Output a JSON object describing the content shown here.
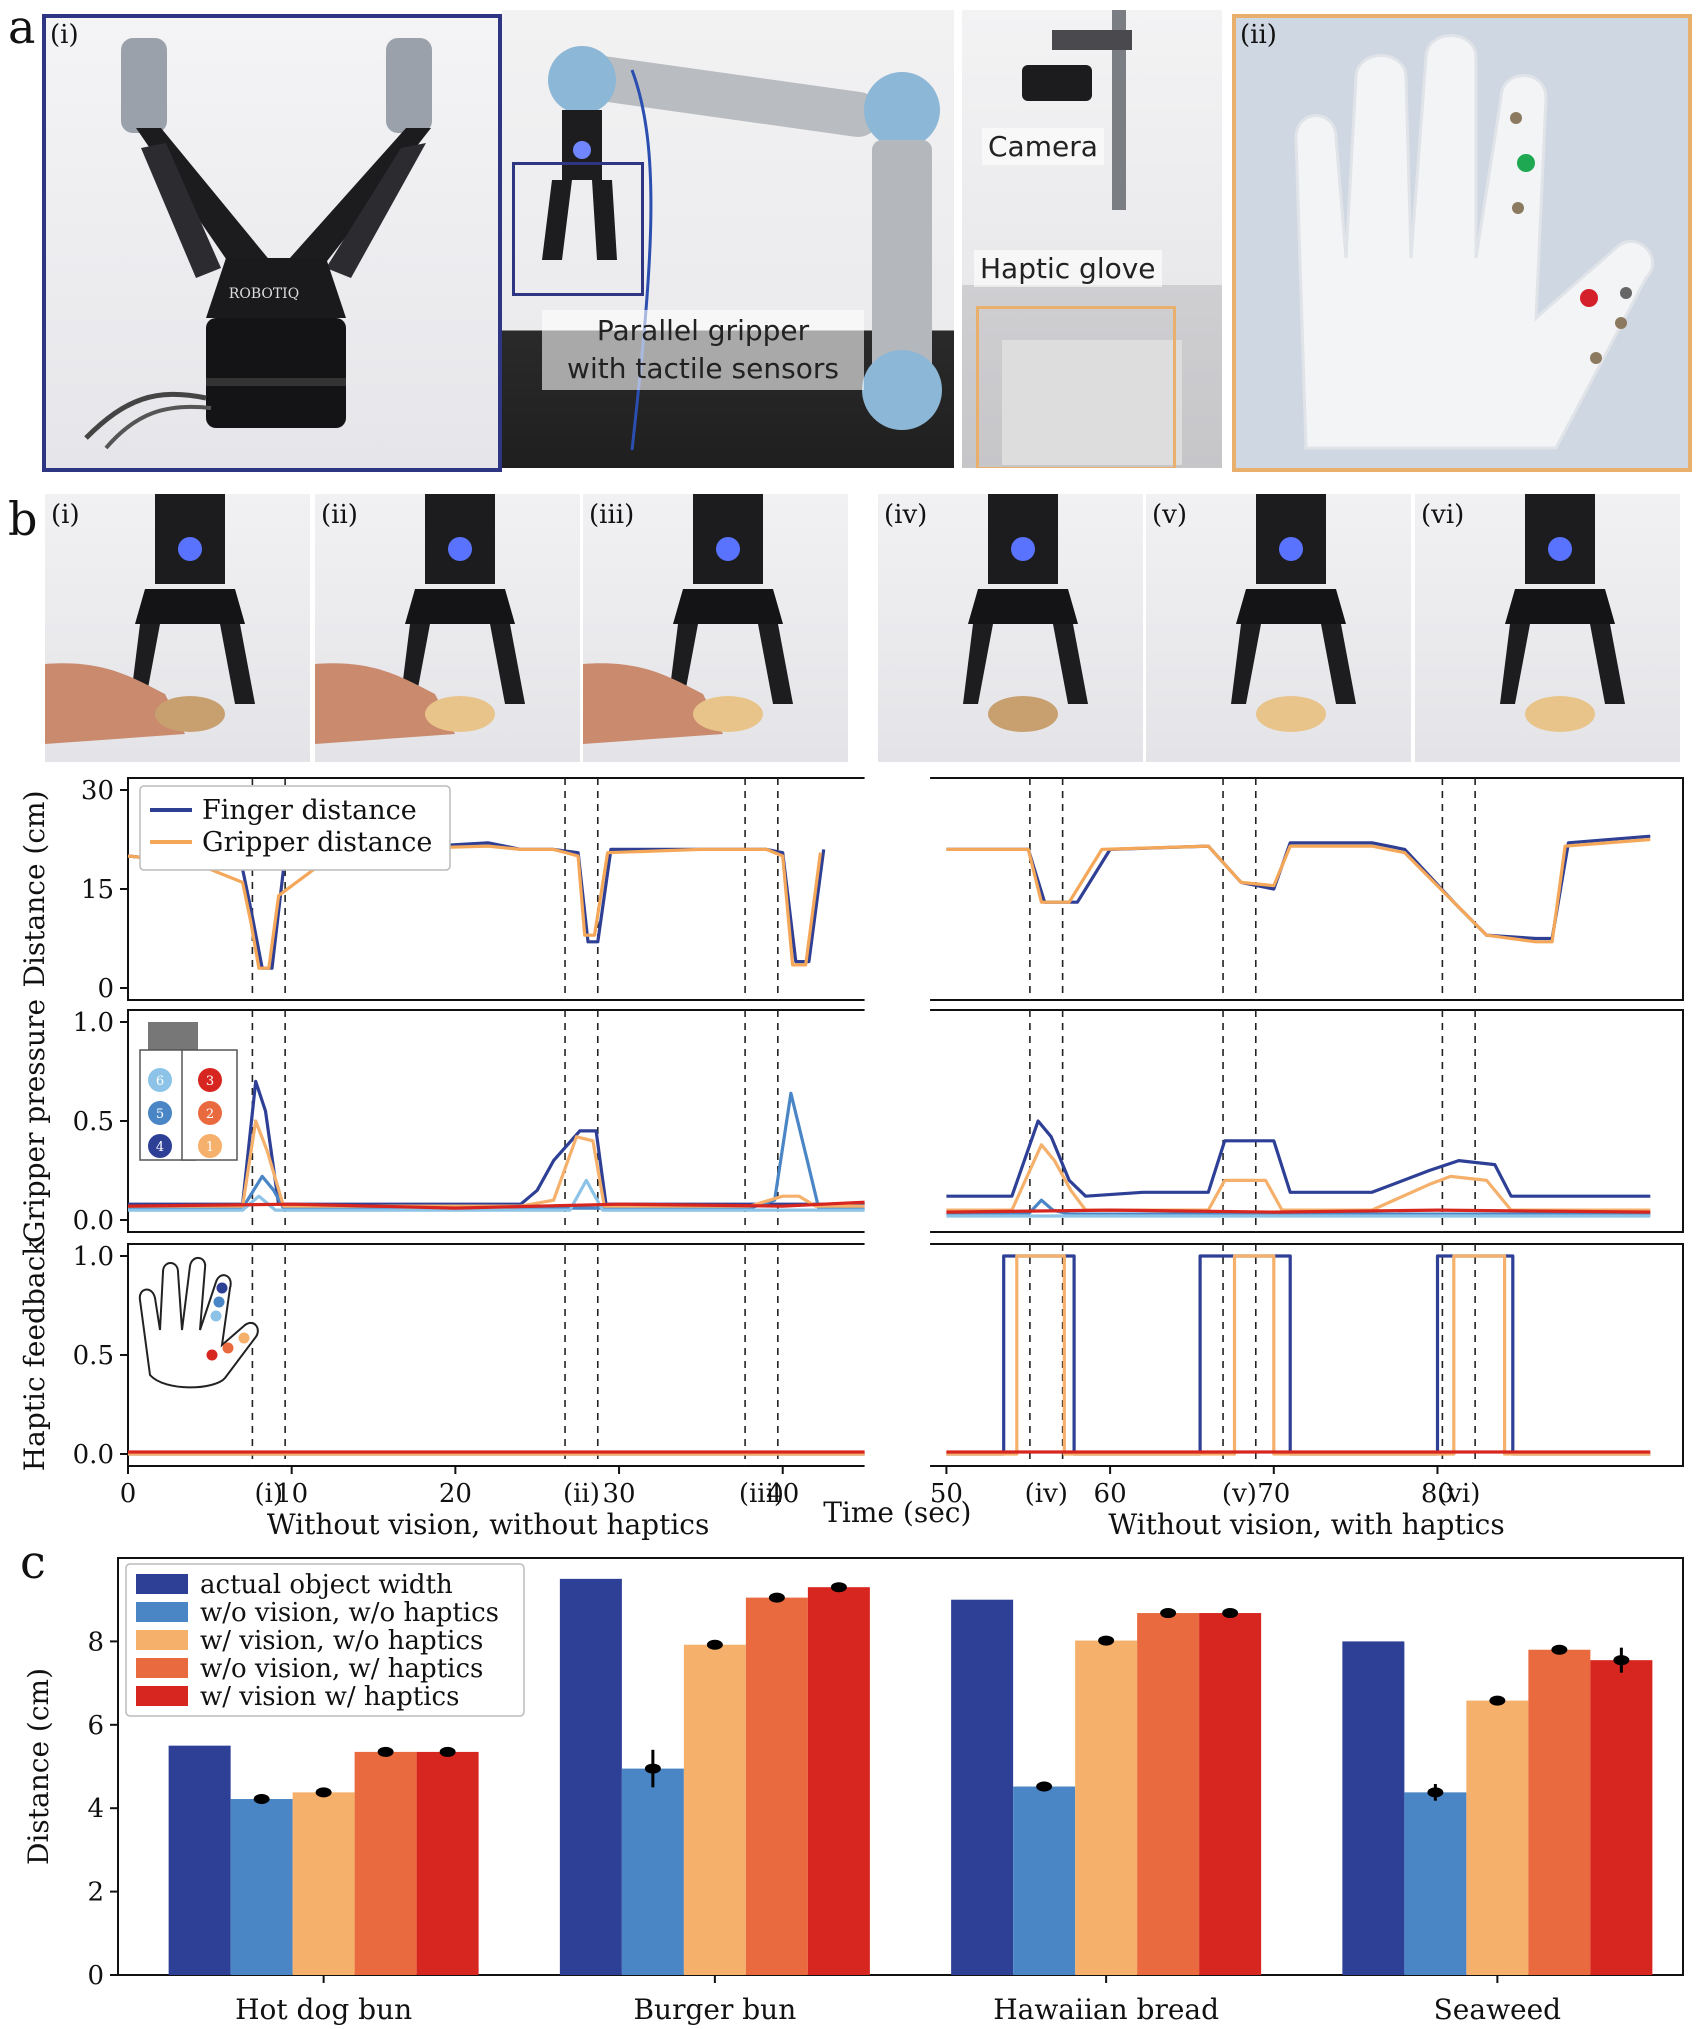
{
  "panel_a": {
    "letter": "a",
    "sub_i": "(i)",
    "sub_ii": "(ii)",
    "label_gripper": "Parallel gripper\nwith tactile sensors",
    "label_camera": "Camera",
    "label_glove": "Haptic glove",
    "logo_text": "ROBOTIQ"
  },
  "panel_b": {
    "letter": "b",
    "photo_labels": [
      "(i)",
      "(ii)",
      "(iii)",
      "(iv)",
      "(v)",
      "(vi)"
    ]
  },
  "panel_c": {
    "letter": "c"
  },
  "colors": {
    "finger": "#2f3f94",
    "gripper": "#f4a758",
    "s1": "#f5b06b",
    "s2": "#ea6a3f",
    "s3": "#d6261f",
    "s4": "#2e3f96",
    "s5": "#4a86c5",
    "s6": "#8cc3e6",
    "frame_blue": "#2e3582",
    "frame_orange": "#e9b06d"
  },
  "chart_data": [
    {
      "type": "line",
      "ylabel": "Distance (cm)",
      "ylim": [
        0,
        30
      ],
      "yticks": [
        "0",
        "15",
        "30"
      ],
      "series": [
        {
          "name": "Finger distance",
          "x": [
            0,
            2,
            5,
            7,
            7.5,
            8.2,
            8.8,
            9.5,
            13,
            15,
            22,
            24,
            26,
            27.5,
            28.1,
            28.7,
            29.5,
            35,
            39,
            40,
            40.8,
            41.6,
            42.5,
            50,
            55,
            56,
            58,
            60,
            66,
            68,
            70,
            71,
            76,
            78,
            81,
            83,
            86,
            87,
            88,
            93
          ],
          "y": [
            20,
            19.5,
            19,
            18,
            12,
            3,
            3,
            18,
            21,
            21,
            22,
            21,
            21,
            20.5,
            7,
            7,
            21,
            21,
            21,
            20.5,
            4,
            4,
            21,
            21,
            21,
            13,
            13,
            21,
            21.5,
            16,
            15,
            22,
            22,
            21,
            13,
            8,
            7.5,
            7.5,
            22,
            23
          ]
        },
        {
          "name": "Gripper distance",
          "x": [
            0,
            2,
            5,
            7,
            7.5,
            8,
            8.6,
            9.2,
            13,
            15,
            22,
            24,
            26,
            27.5,
            27.9,
            28.5,
            29.3,
            35,
            39,
            40,
            40.6,
            41.4,
            42.3,
            50,
            55,
            55.8,
            57.5,
            59.5,
            66,
            68,
            70,
            71,
            76,
            78,
            81,
            83,
            86,
            87,
            87.8,
            93
          ],
          "y": [
            20,
            19.5,
            18,
            16,
            10,
            3,
            3,
            14,
            21,
            21,
            21.5,
            21,
            21,
            20,
            8,
            8,
            20.5,
            21,
            21,
            20,
            3.5,
            3.5,
            20.5,
            21,
            21,
            13,
            13,
            21,
            21.5,
            16,
            15.5,
            21.5,
            21.5,
            20.5,
            13,
            8,
            7,
            7,
            21.5,
            22.5
          ]
        }
      ]
    },
    {
      "type": "line",
      "ylabel": "Gripper pressure",
      "ylim": [
        0,
        1
      ],
      "yticks": [
        "0.0",
        "0.5",
        "1.0"
      ],
      "sensor_labels": [
        "6",
        "5",
        "4",
        "3",
        "2",
        "1"
      ],
      "series": [
        {
          "name": "4",
          "x": [
            0,
            7,
            7.8,
            8.4,
            9.2,
            10,
            24,
            25,
            26,
            27.6,
            28.6,
            29.2,
            38,
            40,
            41,
            42,
            45,
            50,
            54,
            55.6,
            56.4,
            57.5,
            58.5,
            62,
            66,
            67,
            70,
            71,
            76,
            79.5,
            81.3,
            83.5,
            84.5,
            93
          ],
          "y": [
            0.08,
            0.08,
            0.7,
            0.55,
            0.08,
            0.08,
            0.08,
            0.15,
            0.3,
            0.45,
            0.45,
            0.08,
            0.08,
            0.08,
            0.08,
            0.08,
            0.08,
            0.12,
            0.12,
            0.5,
            0.42,
            0.2,
            0.12,
            0.14,
            0.14,
            0.4,
            0.4,
            0.14,
            0.14,
            0.25,
            0.3,
            0.28,
            0.12,
            0.12
          ]
        },
        {
          "name": "5",
          "x": [
            0,
            7,
            8.2,
            8.9,
            9.5,
            38,
            39.5,
            40.5,
            41.5,
            42.2,
            45,
            50,
            55,
            55.8,
            56.5,
            57.5,
            58.5,
            93
          ],
          "y": [
            0.06,
            0.06,
            0.22,
            0.15,
            0.06,
            0.06,
            0.1,
            0.64,
            0.3,
            0.06,
            0.06,
            0.03,
            0.03,
            0.1,
            0.05,
            0.03,
            0.03,
            0.03
          ]
        },
        {
          "name": "1",
          "x": [
            0,
            7,
            7.8,
            8.5,
            9.5,
            24,
            26,
            27.4,
            28.4,
            29.1,
            38,
            40,
            41,
            42,
            45,
            50,
            54,
            55.8,
            56.6,
            57.6,
            58.5,
            66,
            67,
            69.5,
            70.5,
            76,
            79.5,
            80.8,
            83,
            84.5,
            93
          ],
          "y": [
            0.07,
            0.07,
            0.5,
            0.35,
            0.07,
            0.07,
            0.1,
            0.42,
            0.4,
            0.07,
            0.07,
            0.12,
            0.12,
            0.07,
            0.07,
            0.05,
            0.05,
            0.38,
            0.3,
            0.15,
            0.05,
            0.05,
            0.2,
            0.2,
            0.05,
            0.05,
            0.18,
            0.22,
            0.2,
            0.05,
            0.05
          ]
        },
        {
          "name": "6",
          "x": [
            0,
            7,
            8,
            9,
            27,
            28,
            29,
            45,
            50,
            93
          ],
          "y": [
            0.05,
            0.05,
            0.12,
            0.05,
            0.05,
            0.2,
            0.05,
            0.05,
            0.02,
            0.02
          ]
        },
        {
          "name": "3",
          "x": [
            0,
            10,
            20,
            30,
            40,
            45,
            50,
            60,
            70,
            80,
            93
          ],
          "y": [
            0.07,
            0.08,
            0.06,
            0.08,
            0.07,
            0.09,
            0.04,
            0.05,
            0.04,
            0.05,
            0.04
          ]
        }
      ]
    },
    {
      "type": "line",
      "ylabel": "Haptic feedback",
      "ylim": [
        0,
        1
      ],
      "yticks": [
        "0.0",
        "0.5",
        "1.0"
      ],
      "xlim": [
        0,
        95
      ],
      "xticks": [
        "0",
        "10",
        "20",
        "30",
        "40",
        "50",
        "60",
        "70",
        "80"
      ],
      "xlabel": "Time (sec)",
      "event_labels": [
        "(i)",
        "(ii)",
        "(iii)",
        "(iv)",
        "(v)",
        "(vi)"
      ],
      "events": [
        [
          7.6,
          9.6
        ],
        [
          26.7,
          28.7
        ],
        [
          37.7,
          39.7
        ],
        [
          55.1,
          57.1
        ],
        [
          66.9,
          68.9
        ],
        [
          80.3,
          82.3
        ]
      ],
      "group_labels": [
        "Without vision, without haptics",
        "Without vision, with haptics"
      ],
      "series": [
        {
          "name": "4",
          "x": [
            0,
            45,
            50,
            53.5,
            53.5,
            57.8,
            57.8,
            65.5,
            65.5,
            71,
            71,
            80,
            80,
            84.6,
            84.6,
            93
          ],
          "y": [
            0,
            0,
            0,
            0,
            1,
            1,
            0,
            0,
            1,
            1,
            0,
            0,
            1,
            1,
            0,
            0
          ]
        },
        {
          "name": "1",
          "x": [
            0,
            45,
            50,
            54.3,
            54.3,
            57.2,
            57.2,
            67.6,
            67.6,
            70,
            70,
            81,
            81,
            84.1,
            84.1,
            93
          ],
          "y": [
            0,
            0,
            0,
            0,
            1,
            1,
            0,
            0,
            1,
            1,
            0,
            0,
            1,
            1,
            0,
            0
          ]
        },
        {
          "name": "3",
          "x": [
            0,
            45,
            50,
            93
          ],
          "y": [
            0.01,
            0.01,
            0.01,
            0.01
          ]
        }
      ]
    },
    {
      "type": "bar",
      "ylabel": "Distance (cm)",
      "ylim": [
        0,
        10
      ],
      "yticks": [
        "0",
        "2",
        "4",
        "6",
        "8"
      ],
      "categories": [
        "Hot dog bun",
        "Burger bun",
        "Hawaiian bread",
        "Seaweed"
      ],
      "series": [
        {
          "name": "actual object width",
          "values": [
            5.5,
            9.5,
            9.0,
            8.0
          ],
          "err": [
            0,
            0,
            0,
            0
          ]
        },
        {
          "name": "w/o vision, w/o haptics",
          "values": [
            4.22,
            4.95,
            4.52,
            4.38
          ],
          "err": [
            0.12,
            0.45,
            0.12,
            0.2
          ]
        },
        {
          "name": "w/ vision, w/o haptics",
          "values": [
            4.38,
            7.92,
            8.02,
            6.58
          ],
          "err": [
            0.03,
            0.03,
            0.03,
            0.03
          ]
        },
        {
          "name": "w/o vision, w/ haptics",
          "values": [
            5.35,
            9.05,
            8.68,
            7.8
          ],
          "err": [
            0.03,
            0.03,
            0.03,
            0.03
          ]
        },
        {
          "name": "w/ vision w/ haptics",
          "values": [
            5.35,
            9.3,
            8.68,
            7.55
          ],
          "err": [
            0.03,
            0.03,
            0.03,
            0.3
          ]
        }
      ]
    }
  ]
}
